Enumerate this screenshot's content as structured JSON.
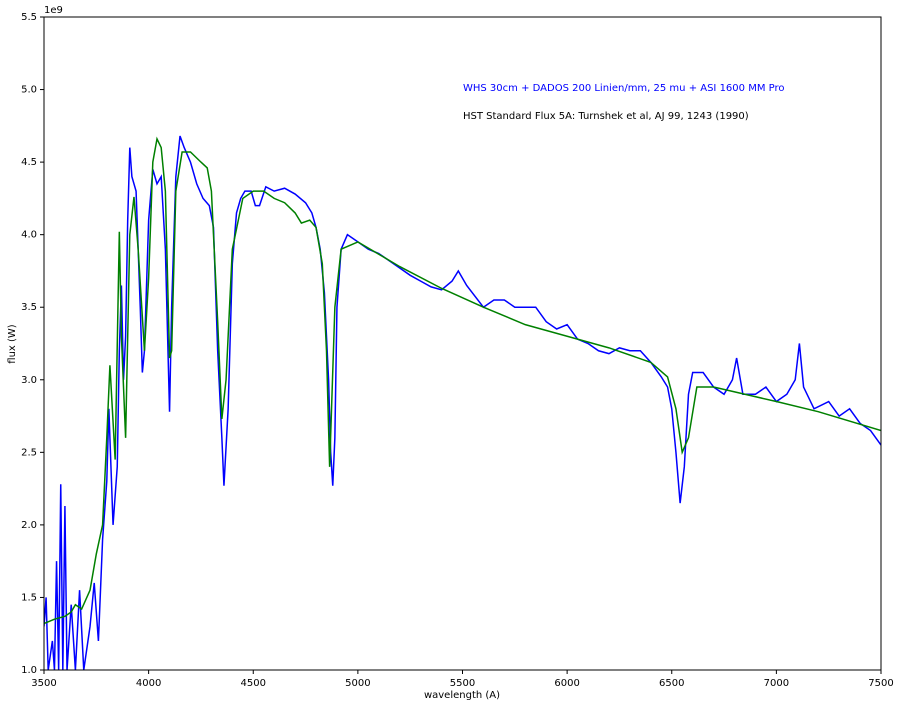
{
  "chart_data": {
    "type": "line",
    "xlabel": "wavelength (A)",
    "ylabel": "flux (W)",
    "y_offset_label": "1e9",
    "annotations": [
      {
        "text": "WHS 30cm + DADOS 200 Linien/mm, 25 mu + ASI 1600 MM Pro",
        "color": "#0000ff"
      },
      {
        "text": "HST Standard Flux 5A: Turnshek et al, AJ 99, 1243 (1990)",
        "color": "#000000"
      }
    ],
    "xlim": [
      3500,
      7500
    ],
    "xticks": [
      3500,
      4000,
      4500,
      5000,
      5500,
      6000,
      6500,
      7000,
      7500
    ],
    "ylim": [
      1.0,
      5.5
    ],
    "yticks": [
      {
        "value": 1.0,
        "label": "1.0"
      },
      {
        "value": 1.5,
        "label": "1.5"
      },
      {
        "value": 2.0,
        "label": "2.0"
      },
      {
        "value": 2.5,
        "label": "2.5"
      },
      {
        "value": 3.0,
        "label": "3.0"
      },
      {
        "value": 3.5,
        "label": "3.5"
      },
      {
        "value": 4.0,
        "label": "4.0"
      },
      {
        "value": 4.5,
        "label": "4.5"
      },
      {
        "value": 5.0,
        "label": "5.0"
      },
      {
        "value": 5.5,
        "label": "5.5"
      }
    ],
    "grid": false,
    "series": [
      {
        "color": "#0000ff",
        "x": [
          3500,
          3510,
          3520,
          3540,
          3550,
          3560,
          3570,
          3580,
          3590,
          3600,
          3610,
          3630,
          3650,
          3670,
          3690,
          3720,
          3740,
          3760,
          3780,
          3800,
          3810,
          3830,
          3850,
          3860,
          3870,
          3880,
          3890,
          3900,
          3910,
          3920,
          3940,
          3960,
          3970,
          3980,
          4000,
          4020,
          4040,
          4060,
          4080,
          4100,
          4110,
          4130,
          4150,
          4170,
          4200,
          4230,
          4260,
          4290,
          4310,
          4330,
          4350,
          4360,
          4380,
          4400,
          4420,
          4440,
          4460,
          4490,
          4510,
          4530,
          4560,
          4600,
          4650,
          4700,
          4750,
          4780,
          4800,
          4820,
          4840,
          4860,
          4870,
          4880,
          4890,
          4900,
          4920,
          4950,
          5000,
          5050,
          5100,
          5150,
          5200,
          5250,
          5300,
          5350,
          5400,
          5450,
          5480,
          5520,
          5600,
          5650,
          5700,
          5750,
          5800,
          5850,
          5900,
          5950,
          6000,
          6050,
          6100,
          6150,
          6200,
          6250,
          6300,
          6350,
          6400,
          6450,
          6480,
          6500,
          6520,
          6540,
          6560,
          6580,
          6600,
          6650,
          6700,
          6750,
          6790,
          6810,
          6840,
          6900,
          6950,
          7000,
          7050,
          7090,
          7110,
          7130,
          7180,
          7250,
          7300,
          7350,
          7400,
          7450,
          7500
        ],
        "values": [
          1.3,
          1.5,
          1.0,
          1.2,
          1.0,
          1.75,
          1.0,
          2.28,
          1.0,
          2.13,
          1.0,
          1.45,
          1.0,
          1.55,
          1.0,
          1.3,
          1.6,
          1.2,
          1.9,
          2.3,
          2.8,
          2.0,
          2.4,
          3.2,
          3.65,
          3.0,
          3.3,
          4.1,
          4.6,
          4.4,
          4.3,
          3.5,
          3.05,
          3.2,
          4.1,
          4.45,
          4.35,
          4.4,
          3.9,
          2.78,
          3.5,
          4.4,
          4.68,
          4.6,
          4.5,
          4.35,
          4.25,
          4.2,
          4.05,
          3.2,
          2.6,
          2.27,
          2.8,
          3.8,
          4.15,
          4.25,
          4.3,
          4.3,
          4.2,
          4.2,
          4.33,
          4.3,
          4.32,
          4.28,
          4.22,
          4.15,
          4.05,
          3.9,
          3.6,
          3.0,
          2.5,
          2.27,
          2.6,
          3.5,
          3.9,
          4.0,
          3.95,
          3.9,
          3.87,
          3.82,
          3.77,
          3.72,
          3.68,
          3.64,
          3.62,
          3.68,
          3.75,
          3.65,
          3.5,
          3.55,
          3.55,
          3.5,
          3.5,
          3.5,
          3.4,
          3.35,
          3.38,
          3.28,
          3.25,
          3.2,
          3.18,
          3.22,
          3.2,
          3.2,
          3.12,
          3.02,
          2.95,
          2.8,
          2.5,
          2.15,
          2.4,
          2.9,
          3.05,
          3.05,
          2.95,
          2.9,
          3.0,
          3.15,
          2.9,
          2.9,
          2.95,
          2.85,
          2.9,
          3.0,
          3.25,
          2.95,
          2.8,
          2.85,
          2.75,
          2.8,
          2.7,
          2.65,
          2.55
        ]
      },
      {
        "color": "#008000",
        "x": [
          3500,
          3550,
          3600,
          3630,
          3650,
          3680,
          3720,
          3750,
          3780,
          3800,
          3815,
          3840,
          3860,
          3870,
          3890,
          3910,
          3930,
          3950,
          3980,
          4000,
          4020,
          4040,
          4060,
          4080,
          4100,
          4110,
          4130,
          4160,
          4200,
          4250,
          4280,
          4300,
          4330,
          4350,
          4370,
          4400,
          4450,
          4500,
          4550,
          4600,
          4650,
          4700,
          4730,
          4770,
          4800,
          4830,
          4850,
          4865,
          4890,
          4920,
          5000,
          5200,
          5400,
          5600,
          5800,
          6000,
          6200,
          6400,
          6480,
          6520,
          6550,
          6580,
          6620,
          6700,
          7000,
          7200,
          7500
        ],
        "values": [
          1.32,
          1.35,
          1.37,
          1.4,
          1.45,
          1.42,
          1.55,
          1.8,
          2.0,
          2.6,
          3.1,
          2.45,
          4.02,
          3.3,
          2.6,
          4.0,
          4.26,
          3.9,
          3.2,
          3.7,
          4.5,
          4.66,
          4.6,
          4.3,
          3.15,
          3.2,
          4.3,
          4.57,
          4.57,
          4.5,
          4.46,
          4.3,
          3.4,
          2.73,
          3.0,
          3.9,
          4.25,
          4.3,
          4.3,
          4.25,
          4.22,
          4.15,
          4.08,
          4.1,
          4.05,
          3.8,
          3.2,
          2.4,
          3.5,
          3.9,
          3.95,
          3.78,
          3.63,
          3.5,
          3.38,
          3.3,
          3.22,
          3.12,
          3.02,
          2.8,
          2.5,
          2.6,
          2.95,
          2.95,
          2.85,
          2.78,
          2.65
        ]
      }
    ]
  }
}
